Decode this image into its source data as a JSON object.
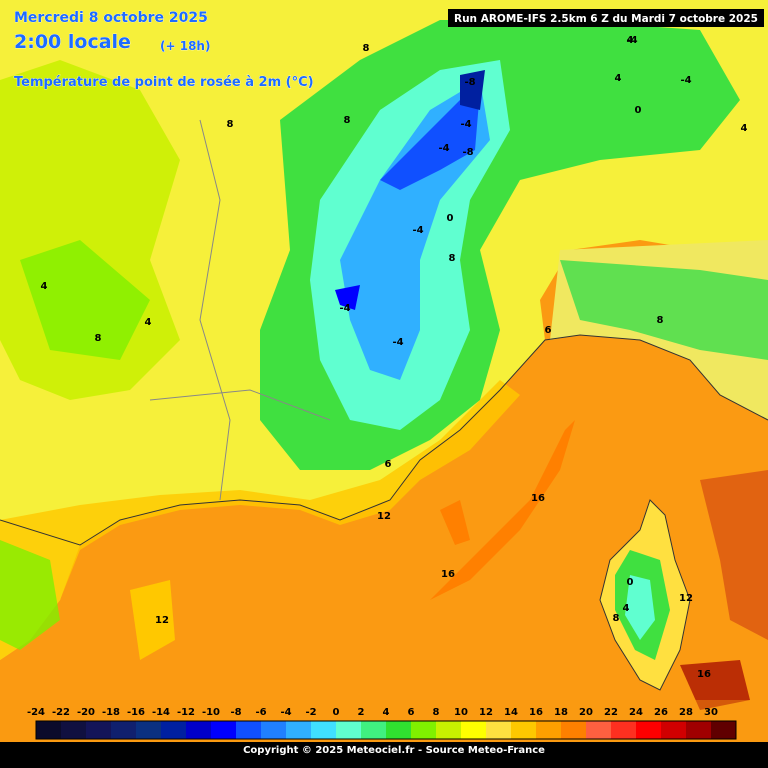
{
  "header": {
    "date": "Mercredi 8 octobre 2025",
    "time": "2:00 locale",
    "lead": "(+ 18h)",
    "parameter": "Température de point de rosée à 2m (°C)",
    "run": "Run AROME-IFS 2.5km 6 Z du Mardi 7 octobre 2025"
  },
  "map_labels": [
    "-8",
    "-4",
    "-8",
    "-4",
    "-4",
    "-4",
    "-4",
    "0",
    "4",
    "4",
    "-4",
    "-4",
    "0",
    "4",
    "8",
    "8",
    "8",
    "4",
    "4",
    "8",
    "6",
    "8",
    "8",
    "12",
    "16",
    "16",
    "12",
    "16",
    "0",
    "4",
    "8",
    "12",
    "6"
  ],
  "legend": {
    "ticks": [
      -24,
      -22,
      -20,
      -18,
      -16,
      -14,
      -12,
      -10,
      -8,
      -6,
      -4,
      -2,
      0,
      2,
      4,
      6,
      8,
      10,
      12,
      14,
      16,
      18,
      20,
      22,
      24,
      26,
      28,
      30
    ],
    "colors": [
      "#0b0b2b",
      "#101040",
      "#141458",
      "#10206e",
      "#0a3080",
      "#0020a0",
      "#0000c8",
      "#0000ff",
      "#1050ff",
      "#2080ff",
      "#30b0ff",
      "#40e0ff",
      "#60ffd0",
      "#40f080",
      "#30e030",
      "#80f000",
      "#c8f000",
      "#ffff00",
      "#ffe040",
      "#ffc800",
      "#ffa000",
      "#ff8000",
      "#ff6040",
      "#ff3020",
      "#ff0000",
      "#d00000",
      "#a00000",
      "#600000"
    ]
  },
  "footer": "Copyright © 2025 Meteociel.fr - Source Meteo-France"
}
